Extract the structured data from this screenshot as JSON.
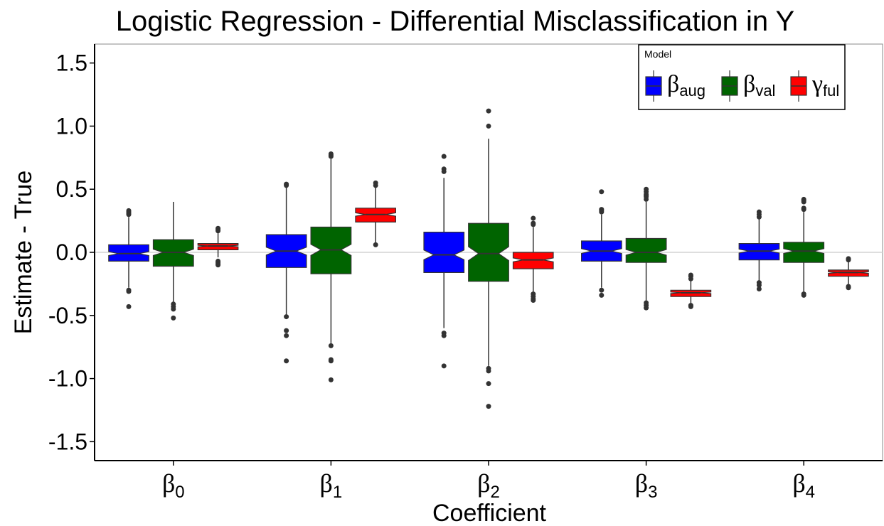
{
  "chart_data": {
    "type": "boxplot",
    "title": "Logistic Regression - Differential Misclassification in Y",
    "xlabel": "Coefficient",
    "ylabel": "Estimate - True",
    "ylim": [
      -1.65,
      1.65
    ],
    "yticks": [
      "1.5",
      "1.0",
      "0.5",
      "0.0",
      "-0.5",
      "-1.0",
      "-1.5"
    ],
    "ytick_values": [
      1.5,
      1.0,
      0.5,
      0.0,
      -0.5,
      -1.0,
      -1.5
    ],
    "reference_line": 0,
    "categories": [
      {
        "symbol": "β",
        "sub": "0"
      },
      {
        "symbol": "β",
        "sub": "1"
      },
      {
        "symbol": "β",
        "sub": "2"
      },
      {
        "symbol": "β",
        "sub": "3"
      },
      {
        "symbol": "β",
        "sub": "4"
      }
    ],
    "legend": {
      "title": "Model",
      "position": "top-right",
      "entries": [
        {
          "symbol": "β",
          "sub": "aug",
          "color": "#0000ff"
        },
        {
          "symbol": "β",
          "sub": "val",
          "color": "#006400"
        },
        {
          "symbol": "γ",
          "sub": "ful",
          "color": "#ff0000"
        }
      ]
    },
    "series": [
      {
        "color": "#0000ff",
        "boxes": [
          {
            "q1": -0.07,
            "median": -0.01,
            "q3": 0.06,
            "whisker_low": -0.28,
            "whisker_high": 0.28,
            "outliers": [
              0.33,
              0.32,
              0.31,
              0.3,
              -0.3,
              -0.31,
              -0.43
            ]
          },
          {
            "q1": -0.12,
            "median": 0.01,
            "q3": 0.14,
            "whisker_low": -0.5,
            "whisker_high": 0.52,
            "outliers": [
              0.54,
              0.53,
              -0.51,
              -0.62,
              -0.66,
              -0.86
            ]
          },
          {
            "q1": -0.16,
            "median": -0.02,
            "q3": 0.16,
            "whisker_low": -0.6,
            "whisker_high": 0.59,
            "outliers": [
              0.76,
              0.66,
              0.64,
              -0.64,
              -0.66,
              -0.9
            ]
          },
          {
            "q1": -0.07,
            "median": 0.01,
            "q3": 0.09,
            "whisker_low": -0.28,
            "whisker_high": 0.3,
            "outliers": [
              0.48,
              0.34,
              0.33,
              0.32,
              -0.3,
              -0.34
            ]
          },
          {
            "q1": -0.06,
            "median": 0.01,
            "q3": 0.07,
            "whisker_low": -0.23,
            "whisker_high": 0.27,
            "outliers": [
              0.32,
              0.3,
              0.28,
              -0.24,
              -0.26,
              -0.29
            ]
          }
        ]
      },
      {
        "color": "#006400",
        "boxes": [
          {
            "q1": -0.11,
            "median": 0.0,
            "q3": 0.1,
            "whisker_low": -0.4,
            "whisker_high": 0.4,
            "outliers": [
              -0.41,
              -0.43,
              -0.45,
              -0.52
            ]
          },
          {
            "q1": -0.17,
            "median": 0.02,
            "q3": 0.2,
            "whisker_low": -0.72,
            "whisker_high": 0.74,
            "outliers": [
              0.78,
              0.77,
              0.76,
              -0.74,
              -0.85,
              -0.86,
              -1.01
            ]
          },
          {
            "q1": -0.23,
            "median": -0.01,
            "q3": 0.23,
            "whisker_low": -0.9,
            "whisker_high": 0.9,
            "outliers": [
              1.12,
              1.0,
              -0.92,
              -0.94,
              -1.04,
              -1.22
            ]
          },
          {
            "q1": -0.08,
            "median": 0.0,
            "q3": 0.11,
            "whisker_low": -0.38,
            "whisker_high": 0.4,
            "outliers": [
              0.5,
              0.48,
              0.46,
              0.45,
              0.44,
              0.42,
              -0.4,
              -0.42,
              -0.44
            ]
          },
          {
            "q1": -0.08,
            "median": 0.01,
            "q3": 0.08,
            "whisker_low": -0.32,
            "whisker_high": 0.32,
            "outliers": [
              0.42,
              0.41,
              0.4,
              0.35,
              0.34,
              -0.33,
              -0.34
            ]
          }
        ]
      },
      {
        "color": "#ff0000",
        "boxes": [
          {
            "q1": 0.02,
            "median": 0.05,
            "q3": 0.07,
            "whisker_low": -0.04,
            "whisker_high": 0.16,
            "outliers": [
              0.19,
              0.18,
              0.17,
              -0.07,
              -0.08,
              -0.09,
              -0.1
            ]
          },
          {
            "q1": 0.24,
            "median": 0.3,
            "q3": 0.35,
            "whisker_low": 0.07,
            "whisker_high": 0.52,
            "outliers": [
              0.55,
              0.53,
              0.06
            ]
          },
          {
            "q1": -0.13,
            "median": -0.06,
            "q3": 0.0,
            "whisker_low": -0.32,
            "whisker_high": 0.2,
            "outliers": [
              0.27,
              0.23,
              0.22,
              -0.33,
              -0.35,
              -0.37,
              -0.38
            ]
          },
          {
            "q1": -0.35,
            "median": -0.32,
            "q3": -0.3,
            "whisker_low": -0.42,
            "whisker_high": -0.22,
            "outliers": [
              -0.18,
              -0.19,
              -0.21,
              -0.42,
              -0.43
            ]
          },
          {
            "q1": -0.19,
            "median": -0.16,
            "q3": -0.14,
            "whisker_low": -0.26,
            "whisker_high": -0.07,
            "outliers": [
              -0.05,
              -0.06,
              -0.27,
              -0.28
            ]
          }
        ]
      }
    ]
  }
}
